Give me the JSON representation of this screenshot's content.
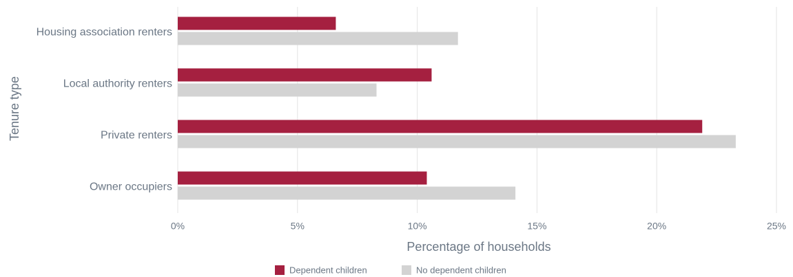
{
  "chart_data": {
    "type": "barh",
    "categories": [
      "Housing association renters",
      "Local authority renters",
      "Private renters",
      "Owner occupiers"
    ],
    "series": [
      {
        "name": "Dependent children",
        "color": "#a52040",
        "values": [
          6.6,
          10.6,
          21.9,
          10.4
        ]
      },
      {
        "name": "No dependent children",
        "color": "#d3d3d3",
        "values": [
          11.7,
          8.3,
          23.3,
          14.1
        ]
      }
    ],
    "xlabel": "Percentage of households",
    "ylabel": "Tenure type",
    "xlim": [
      0,
      25
    ],
    "xticks": [
      {
        "value": 0,
        "label": "0%"
      },
      {
        "value": 5,
        "label": "5%"
      },
      {
        "value": 10,
        "label": "10%"
      },
      {
        "value": 15,
        "label": "15%"
      },
      {
        "value": 20,
        "label": "20%"
      },
      {
        "value": 25,
        "label": "25%"
      }
    ],
    "grid": true
  }
}
